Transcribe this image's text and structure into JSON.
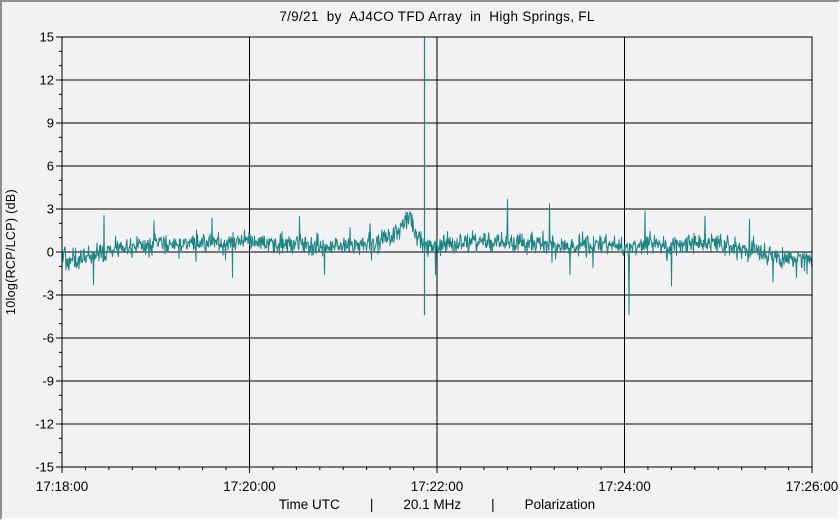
{
  "window_title": "Polarization chart",
  "title": "7/9/21  by  AJ4CO TFD Array  in  High Springs, FL",
  "footer": {
    "items": [
      "Time UTC",
      "20.1 MHz",
      "Polarization"
    ],
    "separator": "|"
  },
  "colors": {
    "trace": "#1e8484",
    "grid": "#000000",
    "plot_border": "#000000",
    "background": "#f2f2f4"
  },
  "chart_data": {
    "type": "line",
    "title": "7/9/21  by  AJ4CO TFD Array  in  High Springs, FL",
    "xlabel": "Time UTC",
    "ylabel": "10log(RCP/LCP) (dB)",
    "frequency_label": "20.1 MHz",
    "mode_label": "Polarization",
    "ylim": [
      -15,
      15
    ],
    "y_major_step_db": 3,
    "y_minor_step_db": 1,
    "y_tick_labels": [
      "15",
      "12",
      "9",
      "6",
      "3",
      "0",
      "-3",
      "-6",
      "-9",
      "-12",
      "-15"
    ],
    "x_ticks": [
      {
        "t": 0,
        "label": "17:18:00"
      },
      {
        "t": 120,
        "label": "17:20:00"
      },
      {
        "t": 240,
        "label": "17:22:00"
      },
      {
        "t": 360,
        "label": "17:24:00"
      },
      {
        "t": 480,
        "label": "17:26:00"
      }
    ],
    "x_range_seconds": [
      0,
      480
    ],
    "x_minor_step_s": 15,
    "x_major_step_s": 120,
    "grid": true,
    "legend": "none",
    "series_name": "10log(RCP/LCP) (dB) at 20.1 MHz",
    "noise_sigma_db": 0.5,
    "noise_outlier_prob": 0.04,
    "noise_outlier_scale": 2.2,
    "seed": 7921,
    "baseline_envelope": [
      [
        0,
        -0.2
      ],
      [
        8,
        -0.5
      ],
      [
        20,
        -0.3
      ],
      [
        35,
        0.3
      ],
      [
        60,
        0.5
      ],
      [
        90,
        0.6
      ],
      [
        115,
        0.8
      ],
      [
        135,
        0.6
      ],
      [
        160,
        0.4
      ],
      [
        185,
        0.4
      ],
      [
        205,
        0.7
      ],
      [
        218,
        1.8
      ],
      [
        222,
        2.6
      ],
      [
        227,
        1.2
      ],
      [
        233,
        0.3
      ],
      [
        245,
        0.5
      ],
      [
        265,
        0.7
      ],
      [
        300,
        0.6
      ],
      [
        320,
        0.4
      ],
      [
        345,
        0.6
      ],
      [
        360,
        0.4
      ],
      [
        375,
        0.6
      ],
      [
        388,
        0.3
      ],
      [
        400,
        0.7
      ],
      [
        418,
        0.6
      ],
      [
        432,
        0.3
      ],
      [
        445,
        0.0
      ],
      [
        458,
        -0.3
      ],
      [
        480,
        -0.5
      ]
    ],
    "spikes": [
      [
        20,
        -2.3
      ],
      [
        27,
        2.6
      ],
      [
        59,
        2.2
      ],
      [
        96,
        2.4
      ],
      [
        109,
        -1.8
      ],
      [
        152,
        2.5
      ],
      [
        168,
        -1.6
      ],
      [
        197,
        2.0
      ],
      [
        285,
        3.7
      ],
      [
        312,
        3.4
      ],
      [
        325,
        -1.6
      ],
      [
        363,
        -4.4
      ],
      [
        373,
        2.9
      ],
      [
        390,
        -2.4
      ],
      [
        440,
        2.3
      ],
      [
        455,
        -2.1
      ],
      [
        470,
        -1.8
      ]
    ],
    "impulse_event": {
      "t": 232,
      "y_min": -4.4,
      "y_max": 15
    }
  }
}
